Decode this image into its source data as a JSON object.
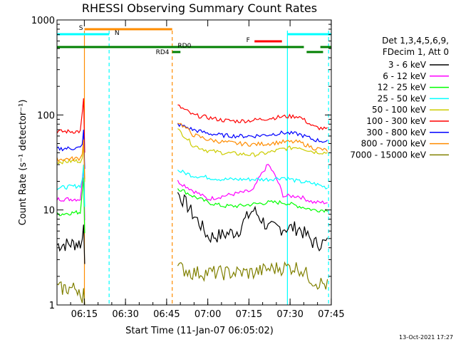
{
  "chart_data": {
    "type": "line",
    "title": "RHESSI Observing Summary Count Rates",
    "xlabel": "Start Time (11-Jan-07 06:05:02)",
    "ylabel": "Count Rate (s⁻¹ detector⁻¹)",
    "yscale": "log",
    "ylim": [
      1,
      1000
    ],
    "xlim_minutes": [
      0,
      100
    ],
    "x_ticks": [
      "06:15",
      "06:30",
      "06:45",
      "07:00",
      "07:15",
      "07:30",
      "07:45"
    ],
    "y_ticks": [
      "1",
      "10",
      "100",
      "1000"
    ],
    "timestamp": "13-Oct-2021 17:27",
    "legend": {
      "header": [
        "Det 1,3,4,5,6,9,",
        "FDecim 1, Att 0"
      ],
      "placement": "right"
    },
    "flags": [
      {
        "label": "S",
        "color": "#ff8c00",
        "start": 10,
        "end": 42
      },
      {
        "label": "N",
        "color": "#00ffff",
        "start": 0,
        "end": 19
      },
      {
        "label": "N",
        "color": "#00ffff",
        "start": 84,
        "end": 100
      },
      {
        "label": "F",
        "color": "#ff0000",
        "start": 72,
        "end": 82
      },
      {
        "label": "RD0",
        "color": "#008000",
        "start": 0,
        "end": 90
      },
      {
        "label": "RD0",
        "color": "#008000",
        "start": 96,
        "end": 100
      },
      {
        "label": "RD4",
        "color": "#008000",
        "start": 42,
        "end": 45
      },
      {
        "label": "",
        "color": "#008000",
        "start": 91,
        "end": 97
      }
    ],
    "vlines": [
      {
        "t": 10,
        "color": "#ff8c00",
        "style": "solid"
      },
      {
        "t": 19,
        "color": "#00ffff",
        "style": "dashed"
      },
      {
        "t": 42,
        "color": "#ff8c00",
        "style": "dashed"
      },
      {
        "t": 84,
        "color": "#00ffff",
        "style": "solid"
      },
      {
        "t": 99,
        "color": "#00ffff",
        "style": "dashed"
      }
    ],
    "series": [
      {
        "name": "3 - 6 keV",
        "color": "#000000",
        "pre": [
          4.3,
          4.5
        ],
        "spike": 7,
        "post": [
          15,
          9,
          5.2,
          5.5,
          6,
          10,
          6.5,
          6.5,
          6.5,
          4.5,
          4.5
        ]
      },
      {
        "name": "6 - 12 keV",
        "color": "#ff00ff",
        "pre": [
          13,
          13
        ],
        "spike": 28,
        "post": [
          20,
          16,
          13,
          14,
          15,
          16,
          30,
          14,
          14,
          12,
          12
        ]
      },
      {
        "name": "12 - 25 keV",
        "color": "#00ff00",
        "pre": [
          9,
          9.5
        ],
        "spike": 22,
        "post": [
          17,
          14,
          12,
          11,
          11,
          11.5,
          12,
          12,
          11,
          10,
          10
        ]
      },
      {
        "name": "25 - 50 keV",
        "color": "#00ffff",
        "pre": [
          17,
          18
        ],
        "spike": 30,
        "post": [
          26,
          23,
          22,
          21,
          21,
          21,
          21,
          22,
          20,
          19,
          17
        ]
      },
      {
        "name": "50 - 100 keV",
        "color": "#cccc00",
        "pre": [
          32,
          33
        ],
        "spike": 50,
        "post": [
          70,
          48,
          42,
          40,
          39,
          38,
          40,
          44,
          46,
          41,
          40
        ]
      },
      {
        "name": "100 - 300 keV",
        "color": "#ff0000",
        "pre": [
          67,
          67
        ],
        "spike": 150,
        "post": [
          125,
          100,
          94,
          88,
          86,
          88,
          92,
          96,
          97,
          75,
          70
        ]
      },
      {
        "name": "300 - 800 keV",
        "color": "#0000ff",
        "pre": [
          44,
          45
        ],
        "spike": 70,
        "post": [
          80,
          70,
          64,
          61,
          60,
          60,
          62,
          65,
          63,
          55,
          52
        ]
      },
      {
        "name": "800 - 7000 keV",
        "color": "#ff8c00",
        "pre": [
          34,
          35
        ],
        "spike": 55,
        "post": [
          85,
          62,
          55,
          52,
          50,
          49,
          50,
          52,
          52,
          45,
          42
        ]
      },
      {
        "name": "7000 - 15000 keV",
        "color": "#808000",
        "pre": [
          1.5,
          1.5
        ],
        "spike": 1.5,
        "post": [
          2.5,
          2.2,
          2.2,
          2.2,
          2.2,
          2.2,
          2.4,
          2.5,
          2.5,
          1.8,
          1.6
        ]
      }
    ]
  }
}
